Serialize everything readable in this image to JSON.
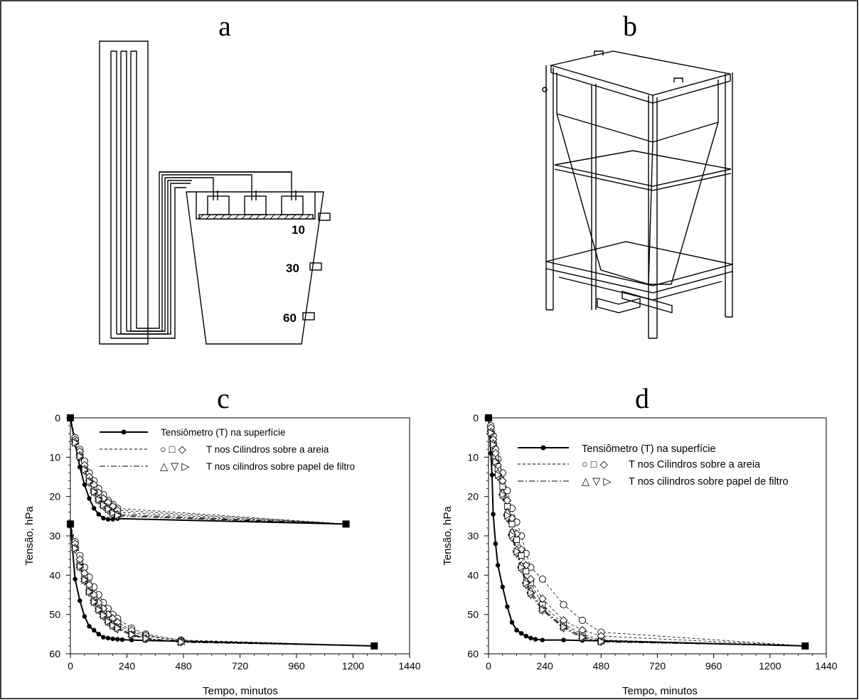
{
  "panels": {
    "a": {
      "letter": "a",
      "depth_labels": [
        "10",
        "30",
        "60"
      ]
    },
    "b": {
      "letter": "b"
    },
    "c": {
      "letter": "c"
    },
    "d": {
      "letter": "d"
    }
  },
  "legend": {
    "surface_label": "Tensiômetro (T) na superfície",
    "sand_label": "T nos Cilindros sobre a areia",
    "filter_label": "T nos cilindros sobre papel de filtro",
    "sand_symbols": "○ □ ◇",
    "filter_symbols": "△ ▽ ▷"
  },
  "colors": {
    "line": "#000000",
    "background": "#ffffff"
  },
  "chart_data": [
    {
      "panel": "c",
      "type": "line",
      "xlabel": "Tempo, minutos",
      "ylabel": "Tensão, hPa",
      "xlim": [
        0,
        1440
      ],
      "ylim": [
        0,
        60
      ],
      "y_inverted": true,
      "xticks": [
        0,
        240,
        480,
        720,
        960,
        1200,
        1440
      ],
      "yticks": [
        0,
        10,
        20,
        30,
        40,
        50,
        60
      ],
      "grid": false,
      "legend_position": "top-right",
      "end_markers": [
        {
          "x": 0,
          "y": 0
        },
        {
          "x": 1170,
          "y": 27
        },
        {
          "x": 0,
          "y": 27
        },
        {
          "x": 1290,
          "y": 58
        }
      ],
      "series": [
        {
          "name": "Tensiômetro (T) na superfície",
          "group": "surface",
          "style": "solid",
          "marker": "dot",
          "x": [
            0,
            20,
            40,
            60,
            80,
            100,
            120,
            140,
            160,
            180,
            200,
            1170
          ],
          "y": [
            0,
            6.5,
            12.5,
            17,
            20.5,
            23,
            24.5,
            25.5,
            25.8,
            25.8,
            25.6,
            27
          ]
        },
        {
          "name": "",
          "group": "sand",
          "style": "dashed",
          "marker": "circle",
          "x": [
            0,
            20,
            40,
            60,
            80,
            100,
            120,
            140,
            160,
            180,
            200,
            1170
          ],
          "y": [
            0,
            5,
            8,
            11,
            14,
            16,
            18,
            19.5,
            21,
            22,
            23,
            27
          ]
        },
        {
          "name": "",
          "group": "sand",
          "style": "dashed",
          "marker": "square",
          "x": [
            0,
            20,
            40,
            60,
            80,
            100,
            120,
            140,
            160,
            180,
            200,
            1170
          ],
          "y": [
            0,
            6,
            9,
            12.5,
            15.5,
            18,
            20,
            21.5,
            22.5,
            23.5,
            24,
            27
          ]
        },
        {
          "name": "",
          "group": "sand",
          "style": "dashed",
          "marker": "diamond",
          "x": [
            0,
            20,
            40,
            60,
            80,
            100,
            120,
            140,
            160,
            180,
            200,
            1170
          ],
          "y": [
            0,
            5.5,
            8.5,
            12,
            15,
            17,
            19,
            20.5,
            21.5,
            22.5,
            23.5,
            27
          ]
        },
        {
          "name": "",
          "group": "filter",
          "style": "dashdot",
          "marker": "triangle-up",
          "x": [
            0,
            20,
            40,
            60,
            80,
            100,
            120,
            140,
            160,
            180,
            200,
            1170
          ],
          "y": [
            0,
            6,
            9.5,
            13,
            16,
            18.5,
            20.5,
            22,
            23,
            24,
            24.5,
            27
          ]
        },
        {
          "name": "",
          "group": "filter",
          "style": "dashdot",
          "marker": "triangle-down",
          "x": [
            0,
            20,
            40,
            60,
            80,
            100,
            120,
            140,
            160,
            180,
            200,
            1170
          ],
          "y": [
            0,
            6.5,
            10,
            13.5,
            16.5,
            19,
            21,
            22.5,
            23.5,
            24.5,
            25,
            27
          ]
        },
        {
          "name": "",
          "group": "filter",
          "style": "dashdot",
          "marker": "triangle-right",
          "x": [
            0,
            20,
            40,
            60,
            80,
            100,
            120,
            140,
            160,
            180,
            200,
            1170
          ],
          "y": [
            0,
            6.3,
            9.8,
            13.2,
            16.2,
            18.8,
            20.8,
            22.2,
            23.2,
            24.2,
            24.8,
            27
          ]
        },
        {
          "name": "",
          "group": "surface",
          "style": "solid",
          "marker": "dot",
          "x": [
            0,
            20,
            40,
            60,
            80,
            100,
            120,
            140,
            160,
            180,
            200,
            220,
            260,
            320,
            470,
            1290
          ],
          "y": [
            27,
            41,
            46.5,
            50.5,
            53,
            54,
            55,
            55.8,
            56,
            56.2,
            56.3,
            56.4,
            56.5,
            56.6,
            56.8,
            58
          ]
        },
        {
          "name": "",
          "group": "sand",
          "style": "dashed",
          "marker": "circle",
          "x": [
            0,
            20,
            40,
            60,
            80,
            100,
            120,
            140,
            160,
            180,
            200,
            260,
            320,
            470,
            1290
          ],
          "y": [
            27,
            31.5,
            35,
            38,
            40.5,
            43,
            45,
            47,
            48.5,
            50,
            51,
            53.5,
            55,
            56.5,
            58
          ]
        },
        {
          "name": "",
          "group": "sand",
          "style": "dashed",
          "marker": "square",
          "x": [
            0,
            20,
            40,
            60,
            80,
            100,
            120,
            140,
            160,
            180,
            200,
            260,
            320,
            470,
            1290
          ],
          "y": [
            27,
            32.5,
            36.5,
            40,
            43,
            45.5,
            47.5,
            49,
            50.5,
            51.5,
            52.5,
            54.5,
            55.5,
            56.8,
            58
          ]
        },
        {
          "name": "",
          "group": "sand",
          "style": "dashed",
          "marker": "diamond",
          "x": [
            0,
            20,
            40,
            60,
            80,
            100,
            120,
            140,
            160,
            180,
            200,
            260,
            320,
            470,
            1290
          ],
          "y": [
            27,
            32,
            36,
            39.5,
            42.5,
            45,
            47,
            48.5,
            50,
            51,
            52,
            54,
            55.3,
            56.7,
            58
          ]
        },
        {
          "name": "",
          "group": "filter",
          "style": "dashdot",
          "marker": "triangle-up",
          "x": [
            0,
            20,
            40,
            60,
            80,
            100,
            120,
            140,
            160,
            180,
            200,
            260,
            320,
            470,
            1290
          ],
          "y": [
            27,
            33,
            37.5,
            41,
            44,
            46.5,
            48.5,
            50,
            51.5,
            52.5,
            53.3,
            55,
            56,
            57,
            58
          ]
        },
        {
          "name": "",
          "group": "filter",
          "style": "dashdot",
          "marker": "triangle-down",
          "x": [
            0,
            20,
            40,
            60,
            80,
            100,
            120,
            140,
            160,
            180,
            200,
            260,
            320,
            470,
            1290
          ],
          "y": [
            27,
            33.5,
            38,
            41.5,
            44.5,
            47,
            49,
            50.5,
            52,
            53,
            53.8,
            55.3,
            56.2,
            57.1,
            58
          ]
        },
        {
          "name": "",
          "group": "filter",
          "style": "dashdot",
          "marker": "triangle-right",
          "x": [
            0,
            20,
            40,
            60,
            80,
            100,
            120,
            140,
            160,
            180,
            200,
            260,
            320,
            470,
            1290
          ],
          "y": [
            27,
            33.2,
            37.8,
            41.2,
            44.2,
            46.8,
            48.8,
            50.2,
            51.8,
            52.8,
            53.5,
            55.1,
            56.1,
            57,
            58
          ]
        }
      ]
    },
    {
      "panel": "d",
      "type": "line",
      "xlabel": "Tempo, minutos",
      "ylabel": "Tensão, hPa",
      "xlim": [
        0,
        1440
      ],
      "ylim": [
        0,
        60
      ],
      "y_inverted": true,
      "xticks": [
        0,
        240,
        480,
        720,
        960,
        1200,
        1440
      ],
      "yticks": [
        0,
        10,
        20,
        30,
        40,
        50,
        60
      ],
      "grid": false,
      "legend_position": "top-right",
      "end_markers": [
        {
          "x": 0,
          "y": 0
        },
        {
          "x": 1350,
          "y": 58
        }
      ],
      "series": [
        {
          "name": "Tensiômetro (T) na superfície",
          "group": "surface",
          "style": "solid",
          "marker": "dot",
          "x": [
            0,
            5,
            10,
            15,
            20,
            30,
            40,
            60,
            80,
            100,
            120,
            140,
            160,
            180,
            200,
            230,
            320,
            400,
            480,
            1350
          ],
          "y": [
            0,
            3,
            9,
            14.5,
            24.5,
            32,
            37.5,
            43,
            48,
            52,
            54,
            54.8,
            55.5,
            56,
            56.3,
            56.5,
            56.5,
            56.6,
            56.7,
            58
          ]
        },
        {
          "name": "",
          "group": "sand",
          "style": "dashed",
          "marker": "circle",
          "x": [
            0,
            10,
            20,
            30,
            40,
            60,
            80,
            100,
            120,
            140,
            160,
            180,
            230,
            320,
            400,
            480,
            1350
          ],
          "y": [
            0,
            2,
            4.5,
            8,
            10.5,
            14,
            18.5,
            23,
            26.5,
            30,
            34.5,
            38,
            41,
            47.5,
            51.5,
            54.5,
            58
          ]
        },
        {
          "name": "",
          "group": "sand",
          "style": "dashed",
          "marker": "square",
          "x": [
            0,
            10,
            20,
            30,
            40,
            60,
            80,
            100,
            120,
            140,
            160,
            180,
            230,
            320,
            400,
            480,
            1350
          ],
          "y": [
            0,
            3,
            6,
            10,
            13,
            17.5,
            22.5,
            27,
            31,
            35,
            39,
            42,
            47.5,
            52.5,
            55,
            56.5,
            58
          ]
        },
        {
          "name": "",
          "group": "sand",
          "style": "dashed",
          "marker": "diamond",
          "x": [
            0,
            10,
            20,
            30,
            40,
            60,
            80,
            100,
            120,
            140,
            160,
            180,
            230,
            320,
            400,
            480,
            1350
          ],
          "y": [
            0,
            2.5,
            5.5,
            9,
            12,
            16,
            21,
            25.5,
            29.5,
            33.5,
            37.5,
            41,
            46,
            51.5,
            54,
            55.5,
            58
          ]
        },
        {
          "name": "",
          "group": "filter",
          "style": "dashdot",
          "marker": "triangle-up",
          "x": [
            0,
            10,
            20,
            30,
            40,
            60,
            80,
            100,
            120,
            140,
            160,
            180,
            230,
            320,
            400,
            480,
            1350
          ],
          "y": [
            0,
            3.5,
            6.5,
            11,
            14,
            19,
            24,
            29,
            33.5,
            37.5,
            41.5,
            44,
            48.5,
            53,
            55.5,
            56.8,
            58
          ]
        },
        {
          "name": "",
          "group": "filter",
          "style": "dashdot",
          "marker": "triangle-down",
          "x": [
            0,
            10,
            20,
            30,
            40,
            60,
            80,
            100,
            120,
            140,
            160,
            180,
            230,
            320,
            400,
            480,
            1350
          ],
          "y": [
            0,
            4,
            7,
            11.5,
            15,
            20,
            25.5,
            30.5,
            34.5,
            38.5,
            42.5,
            45,
            49,
            53.5,
            56,
            57,
            58
          ]
        },
        {
          "name": "",
          "group": "filter",
          "style": "dashdot",
          "marker": "triangle-right",
          "x": [
            0,
            10,
            20,
            30,
            40,
            60,
            80,
            100,
            120,
            140,
            160,
            180,
            230,
            320,
            400,
            480,
            1350
          ],
          "y": [
            0,
            3.8,
            6.8,
            11.2,
            14.5,
            19.5,
            24.8,
            29.8,
            34,
            38,
            42,
            44.5,
            48.8,
            53.2,
            55.8,
            56.9,
            58
          ]
        }
      ]
    }
  ]
}
